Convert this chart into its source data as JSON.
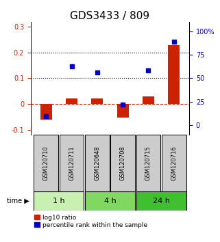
{
  "title": "GDS3433 / 809",
  "samples": [
    "GSM120710",
    "GSM120711",
    "GSM120648",
    "GSM120708",
    "GSM120715",
    "GSM120716"
  ],
  "log10_ratio": [
    -0.062,
    0.022,
    0.022,
    -0.052,
    0.03,
    0.23
  ],
  "percentile_rank": [
    10,
    63,
    56,
    22,
    58,
    89
  ],
  "time_groups": [
    {
      "label": "1 h",
      "color": "#c8f0b0",
      "start": 0,
      "end": 1
    },
    {
      "label": "4 h",
      "color": "#80d860",
      "start": 2,
      "end": 3
    },
    {
      "label": "24 h",
      "color": "#40c030",
      "start": 4,
      "end": 5
    }
  ],
  "bar_color": "#cc2200",
  "dot_color": "#0000cc",
  "left_ylim": [
    -0.12,
    0.32
  ],
  "left_yticks": [
    -0.1,
    0.0,
    0.1,
    0.2,
    0.3
  ],
  "left_yticklabels": [
    "-0.1",
    "0",
    "0.1",
    "0.2",
    "0.3"
  ],
  "right_ylim": [
    -10,
    110
  ],
  "right_yticks": [
    0,
    25,
    50,
    75,
    100
  ],
  "right_yticklabels": [
    "0",
    "25",
    "50",
    "75",
    "100%"
  ],
  "hline_y": [
    0.1,
    0.2
  ],
  "zero_line_y": 0.0,
  "background_color": "#ffffff",
  "sample_box_color": "#cccccc",
  "title_fontsize": 11,
  "tick_fontsize": 7,
  "legend_fontsize": 6.5
}
